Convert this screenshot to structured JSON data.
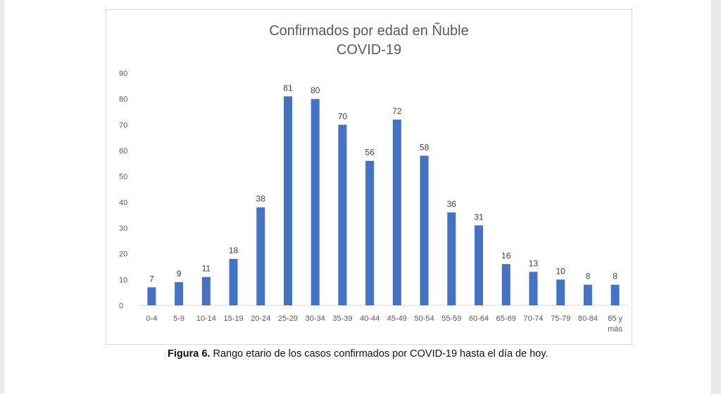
{
  "chart_data": {
    "type": "bar",
    "title": "Confirmados por edad en Ñuble",
    "subtitle": "COVID-19",
    "categories": [
      "0-4",
      "5-9",
      "10-14",
      "15-19",
      "20-24",
      "25-29",
      "30-34",
      "35-39",
      "40-44",
      "45-49",
      "50-54",
      "55-59",
      "60-64",
      "65-69",
      "70-74",
      "75-79",
      "80-84",
      "85 y más"
    ],
    "values": [
      7,
      9,
      11,
      18,
      38,
      81,
      80,
      70,
      56,
      72,
      58,
      36,
      31,
      16,
      13,
      10,
      8,
      8
    ],
    "y_ticks": [
      "0",
      "10",
      "20",
      "30",
      "40",
      "50",
      "60",
      "70",
      "80",
      "90"
    ],
    "ylim": [
      0,
      90
    ],
    "xlabel": "",
    "ylabel": "",
    "grid": false,
    "bar_color": "#4472c4",
    "data_labels": true
  },
  "caption": {
    "label": "Figura 6.",
    "text": " Rango etario de los casos confirmados por COVID-19 hasta el día de hoy."
  }
}
